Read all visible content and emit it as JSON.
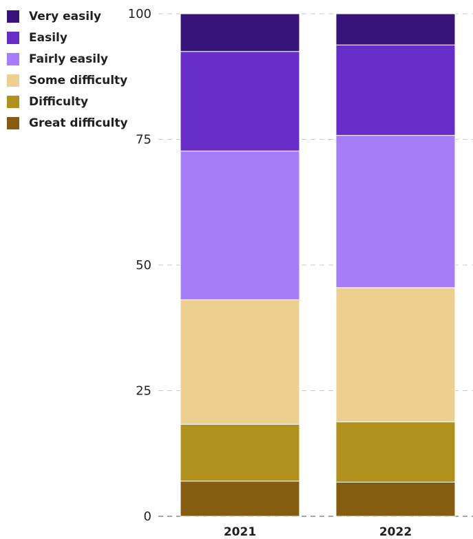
{
  "chart_data": {
    "type": "bar",
    "stacked": true,
    "title": "",
    "xlabel": "",
    "ylabel": "",
    "ylim": [
      0,
      100
    ],
    "yticks": [
      0,
      25,
      50,
      75,
      100
    ],
    "grid": "horizontal-dashed",
    "legend_position": "top-left",
    "categories": [
      "2021",
      "2022"
    ],
    "series": [
      {
        "name": "Great difficulty",
        "color": "#855d10",
        "values": [
          7,
          6.8
        ]
      },
      {
        "name": "Difficulty",
        "color": "#b0911e",
        "values": [
          11.3,
          12
        ]
      },
      {
        "name": "Some difficulty",
        "color": "#edd090",
        "values": [
          24.8,
          26.7
        ]
      },
      {
        "name": "Fairly easily",
        "color": "#a67cf9",
        "values": [
          29.6,
          30.3
        ]
      },
      {
        "name": "Easily",
        "color": "#672dc8",
        "values": [
          19.8,
          18
        ]
      },
      {
        "name": "Very easily",
        "color": "#37137a",
        "values": [
          7.5,
          6.2
        ]
      }
    ]
  }
}
